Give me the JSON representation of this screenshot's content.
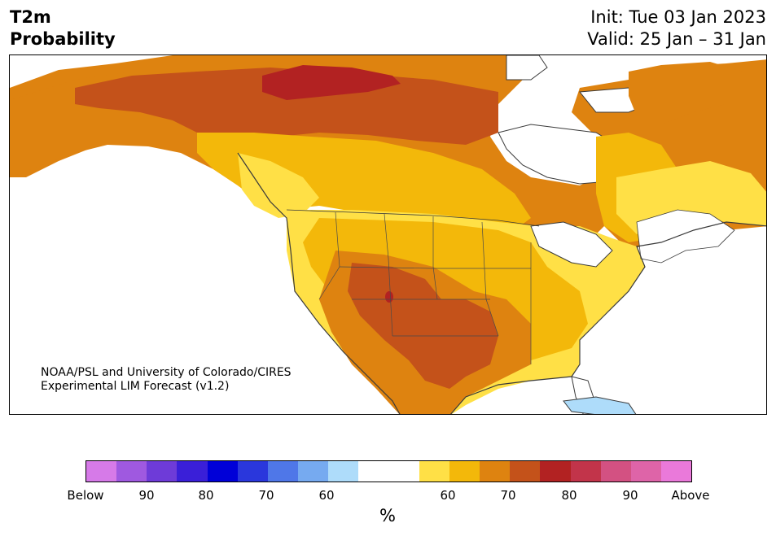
{
  "header": {
    "title_line1": "T2m",
    "title_line2": "Probability",
    "init": "Init: Tue 03 Jan 2023",
    "valid": "Valid: 25 Jan – 31 Jan"
  },
  "map": {
    "credit_line1": "NOAA/PSL and University of Colorado/CIRES",
    "credit_line2": "Experimental LIM Forecast (v1.2)"
  },
  "legend": {
    "colors": [
      "#d67ae8",
      "#9f59e0",
      "#6e3bd8",
      "#3a1fd8",
      "#0000d8",
      "#2a37dc",
      "#4f77e8",
      "#76aaf0",
      "#aedcfa",
      "#ffffff",
      "#ffffff",
      "#ffe046",
      "#f3b80a",
      "#de8310",
      "#c4521a",
      "#b22222",
      "#c2344a",
      "#d35182",
      "#de64a8",
      "#ea79da"
    ],
    "tick_labels": [
      "Below",
      "90",
      "80",
      "70",
      "60",
      "60",
      "70",
      "80",
      "90",
      "Above"
    ],
    "unit": "%"
  }
}
